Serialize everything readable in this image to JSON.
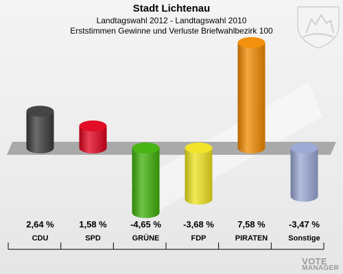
{
  "header": {
    "title": "Stadt Lichtenau",
    "subtitle1": "Landtagswahl 2012 - Landtagswahl 2010",
    "subtitle2": "Erststimmen Gewinne und Verluste Briefwahlbezirk 100"
  },
  "watermark": {
    "line1": "VOTE",
    "line2": "MANAGER"
  },
  "chart_data": {
    "type": "bar",
    "title": "Stadt Lichtenau",
    "subtitle": "Landtagswahl 2012 - Landtagswahl 2010 / Erststimmen Gewinne und Verluste Briefwahlbezirk 100",
    "categories": [
      "CDU",
      "SPD",
      "GRÜNE",
      "FDP",
      "PIRATEN",
      "Sonstige"
    ],
    "values": [
      2.64,
      1.58,
      -4.65,
      -3.68,
      7.58,
      -3.47
    ],
    "value_labels": [
      "2,64 %",
      "1,58 %",
      "-4,65 %",
      "-3,68 %",
      "7,58 %",
      "-3,47 %"
    ],
    "colors": [
      "#3a3a3a",
      "#e0001b",
      "#3fb00a",
      "#efe21e",
      "#f28a00",
      "#98a6d3"
    ],
    "xlabel": "",
    "ylabel": "",
    "grid": false,
    "legend": "none"
  }
}
